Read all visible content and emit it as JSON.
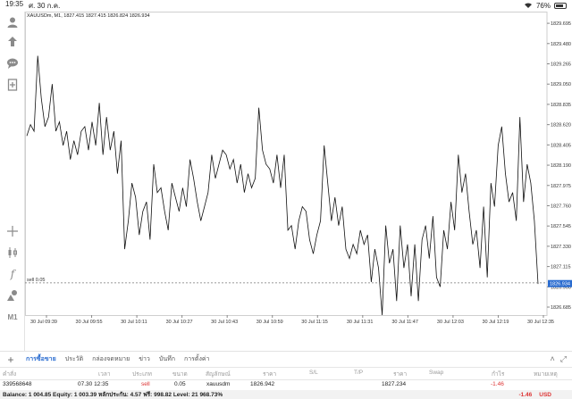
{
  "status_bar": {
    "time": "19:35",
    "date": "ศ. 30 ก.ค.",
    "battery": "76%"
  },
  "chart": {
    "symbol_info": "XAUUSDm, M1, 1827.415 1827.415 1826.824 1826.934",
    "sell_label": "sell 0.05",
    "current_price": "1826.934",
    "colors": {
      "line": "#111111",
      "grid": "#e9e9e9",
      "price_tag": "#2a6cd0",
      "dashed": "#777777"
    }
  },
  "chart_data": {
    "type": "line",
    "title": "",
    "x_ticks": [
      "30 Jul 09:39",
      "30 Jul 09:55",
      "30 Jul 10:11",
      "30 Jul 10:27",
      "30 Jul 10:43",
      "30 Jul 10:59",
      "30 Jul 11:15",
      "30 Jul 11:31",
      "30 Jul 11:47",
      "30 Jul 12:03",
      "30 Jul 12:19",
      "30 Jul 12:35"
    ],
    "y_ticks": [
      1829.695,
      1829.48,
      1829.265,
      1829.05,
      1828.835,
      1828.62,
      1828.405,
      1828.19,
      1827.975,
      1827.76,
      1827.545,
      1827.33,
      1827.115,
      1826.9,
      1826.685
    ],
    "ylim": [
      1826.6,
      1829.8
    ],
    "grid": false,
    "series": [
      {
        "values": [
          1828.5,
          1828.62,
          1828.55,
          1829.35,
          1828.9,
          1828.6,
          1828.7,
          1829.05,
          1828.55,
          1828.65,
          1828.4,
          1828.55,
          1828.25,
          1828.45,
          1828.3,
          1828.55,
          1828.6,
          1828.35,
          1828.65,
          1828.4,
          1828.85,
          1828.3,
          1828.7,
          1828.35,
          1828.55,
          1828.1,
          1828.45,
          1827.3,
          1827.6,
          1828.0,
          1827.85,
          1827.45,
          1827.7,
          1827.8,
          1827.4,
          1828.2,
          1827.9,
          1827.95,
          1827.7,
          1827.5,
          1828.0,
          1827.85,
          1827.7,
          1827.95,
          1827.75,
          1828.25,
          1828.05,
          1827.8,
          1827.6,
          1827.75,
          1827.9,
          1828.3,
          1828.05,
          1828.2,
          1828.35,
          1828.3,
          1828.15,
          1828.25,
          1828.0,
          1828.2,
          1827.9,
          1828.1,
          1827.95,
          1828.05,
          1828.8,
          1828.35,
          1828.2,
          1828.15,
          1828.0,
          1828.3,
          1827.95,
          1828.3,
          1827.5,
          1827.55,
          1827.3,
          1827.6,
          1827.75,
          1827.7,
          1827.4,
          1827.25,
          1827.45,
          1827.6,
          1828.4,
          1828.0,
          1827.6,
          1827.85,
          1827.55,
          1827.75,
          1827.3,
          1827.2,
          1827.35,
          1827.25,
          1827.5,
          1827.35,
          1827.45,
          1826.95,
          1827.3,
          1827.1,
          1826.6,
          1827.55,
          1827.15,
          1827.3,
          1826.75,
          1827.55,
          1827.1,
          1827.35,
          1826.8,
          1827.35,
          1826.75,
          1827.4,
          1827.55,
          1827.2,
          1827.65,
          1827.0,
          1826.9,
          1827.5,
          1827.3,
          1827.8,
          1827.5,
          1828.3,
          1827.9,
          1828.1,
          1827.7,
          1827.35,
          1827.5,
          1827.1,
          1827.75,
          1827.0,
          1828.0,
          1827.75,
          1828.4,
          1828.6,
          1828.1,
          1827.8,
          1827.9,
          1827.6,
          1828.7,
          1827.8,
          1828.2,
          1828.0,
          1827.6,
          1826.93
        ]
      }
    ]
  },
  "toolbar": {
    "icons": [
      "person-icon",
      "upload-icon",
      "chat-icon",
      "add-document-icon",
      "crosshair-icon",
      "candles-icon",
      "function-icon",
      "objects-icon",
      "timeframe-label"
    ],
    "timeframe": "M1"
  },
  "bottom_tabs": {
    "add": "+",
    "tabs": [
      "การซื้อขาย",
      "ประวัติ",
      "กล่องจดหมาย",
      "ข่าว",
      "บันทึก",
      "การตั้งค่า"
    ]
  },
  "positions_header": {
    "order": "คำสั่ง",
    "time": "เวลา",
    "type": "ประเภท",
    "volume": "ขนาด",
    "symbol": "สัญลักษณ์",
    "price": "ราคา",
    "sl": "S/L",
    "tp": "T/P",
    "current_price": "ราคา",
    "swap": "Swap",
    "profit": "กำไร",
    "comment": "หมายเหตุ"
  },
  "position": {
    "order": "339568648",
    "time": "07.30 12:35",
    "type": "sell",
    "volume": "0.05",
    "symbol": "xauusdm",
    "price": "1826.942",
    "current_price": "1827.234",
    "profit": "-1.46"
  },
  "account": {
    "summary": "Balance: 1 004.85 Equity: 1 003.39 หลักประกัน: 4.57 ฟรี: 998.82 Level: 21 968.73%",
    "profit": "-1.46",
    "currency": "USD"
  }
}
